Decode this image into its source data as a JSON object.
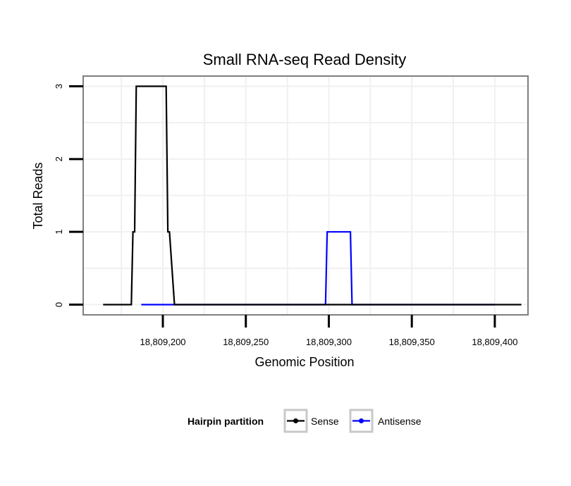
{
  "chart_data": {
    "type": "line",
    "title": "Small RNA-seq Read Density",
    "xlabel": "Genomic Position",
    "ylabel": "Total Reads",
    "xlim": [
      18809152,
      18809420
    ],
    "ylim": [
      -0.14,
      3.14
    ],
    "x_ticks": [
      18809200,
      18809250,
      18809300,
      18809350,
      18809400
    ],
    "x_tick_labels": [
      "18,809,200",
      "18,809,250",
      "18,809,300",
      "18,809,350",
      "18,809,400"
    ],
    "y_ticks": [
      0,
      1,
      2,
      3
    ],
    "y_tick_labels": [
      "0",
      "1",
      "2",
      "3"
    ],
    "grid": true,
    "legend": {
      "title": "Hairpin partition",
      "position": "bottom",
      "entries": [
        "Sense",
        "Antisense"
      ]
    },
    "series": [
      {
        "name": "Antisense",
        "color": "#0000ff",
        "x": [
          18809187,
          18809207,
          18809298,
          18809299,
          18809313,
          18809314,
          18809400
        ],
        "y": [
          0,
          0,
          0,
          1,
          1,
          0,
          0
        ]
      },
      {
        "name": "Sense",
        "color": "#000000",
        "x": [
          18809164,
          18809181,
          18809182,
          18809183,
          18809184,
          18809202,
          18809203,
          18809204,
          18809207,
          18809416
        ],
        "y": [
          0,
          0,
          1,
          1,
          3,
          3,
          1,
          1,
          0,
          0
        ]
      }
    ]
  }
}
